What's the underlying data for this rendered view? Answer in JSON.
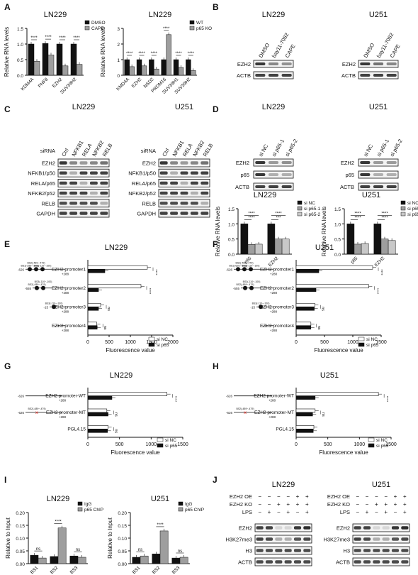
{
  "panels": {
    "A": {
      "letter": "A",
      "charts": [
        {
          "title": "LN229",
          "ylabel": "Relative RNA levels",
          "legend": [
            "DMSO",
            "CAPE"
          ]
        },
        {
          "title": "LN229",
          "ylabel": "Relative RNA levels",
          "legend": [
            "WT",
            "p65 KO"
          ]
        }
      ]
    },
    "B": {
      "letter": "B",
      "blots": [
        {
          "title": "LN229",
          "lanes": [
            "DMSO",
            "bay11-7082",
            "CAPE"
          ],
          "rows": [
            "EZH2",
            "ACTB"
          ]
        },
        {
          "title": "U251",
          "lanes": [
            "DMSO",
            "bay11-7082",
            "CAPE"
          ],
          "rows": [
            "EZH2",
            "ACTB"
          ]
        }
      ]
    },
    "C": {
      "letter": "C",
      "blots": [
        {
          "title": "LN229",
          "header": "siRNA",
          "lanes": [
            "Ctrl",
            "NFKB1",
            "RELA",
            "NFKB2",
            "RELB"
          ],
          "rows": [
            "EZH2",
            "NFKB1/p50",
            "RELA/p65",
            "NFKB2/p52",
            "RELB",
            "GAPDH"
          ]
        },
        {
          "title": "U251",
          "header": "siRNA",
          "lanes": [
            "Ctrl",
            "NFKB1",
            "RELA",
            "NFKB2",
            "RELB"
          ],
          "rows": [
            "EZH2",
            "NFKB1/p50",
            "RELA/p65",
            "NFKB2/p52",
            "RELB",
            "GAPDH"
          ]
        }
      ]
    },
    "D": {
      "letter": "D",
      "blots": [
        {
          "title": "LN229",
          "lanes": [
            "si NC",
            "si p65-1",
            "si p65-2"
          ],
          "rows": [
            "EZH2",
            "p65",
            "ACTB"
          ]
        },
        {
          "title": "U251",
          "lanes": [
            "si NC",
            "si p65-1",
            "si p65-2"
          ],
          "rows": [
            "EZH2",
            "p65",
            "ACTB"
          ]
        }
      ],
      "charts": [
        {
          "title": "LN229",
          "ylabel": "Relative RNA levels",
          "legend": [
            "si NC",
            "si p65-1",
            "si p65-2"
          ]
        },
        {
          "title": "U251",
          "ylabel": "Relative RNA levels",
          "legend": [
            "si NC",
            "si p65-1",
            "si p65-2"
          ]
        }
      ]
    },
    "E": {
      "letter": "E",
      "title": "LN229",
      "xlabel": "Fluorescence value",
      "legend": [
        "si NC",
        "si p65"
      ]
    },
    "F": {
      "letter": "F",
      "title": "U251",
      "xlabel": "Fluorescence value",
      "legend": [
        "si NC",
        "si p65"
      ]
    },
    "G": {
      "letter": "G",
      "title": "LN229",
      "xlabel": "Fluorescence value",
      "legend": [
        "si NC",
        "si p65"
      ]
    },
    "H": {
      "letter": "H",
      "title": "U251",
      "xlabel": "Fluorescence value",
      "legend": [
        "si NC",
        "si p65"
      ]
    },
    "I": {
      "letter": "I",
      "charts": [
        {
          "title": "LN229",
          "ylabel": "Relative to Input",
          "legend": [
            "IgG",
            "p65 ChIP"
          ]
        },
        {
          "title": "U251",
          "ylabel": "Relative to Input",
          "legend": [
            "IgG",
            "p65 ChIP"
          ]
        }
      ]
    },
    "J": {
      "letter": "J",
      "blots": [
        {
          "title": "LN229",
          "conditions": [
            {
              "label": "EZH2 OE",
              "signs": [
                "−",
                "−",
                "−",
                "−",
                "+",
                "+"
              ]
            },
            {
              "label": "EZH2 KO",
              "signs": [
                "−",
                "−",
                "+",
                "+",
                "+",
                "+"
              ]
            },
            {
              "label": "LPS",
              "signs": [
                "−",
                "+",
                "−",
                "+",
                "−",
                "+"
              ]
            }
          ],
          "rows": [
            "EZH2",
            "H3K27me3",
            "H3",
            "ACTB"
          ]
        },
        {
          "title": "U251",
          "conditions": [
            {
              "label": "EZH2 OE",
              "signs": [
                "−",
                "−",
                "−",
                "−",
                "+",
                "+"
              ]
            },
            {
              "label": "EZH2 KO",
              "signs": [
                "−",
                "−",
                "+",
                "+",
                "+",
                "+"
              ]
            },
            {
              "label": "LPS",
              "signs": [
                "−",
                "+",
                "−",
                "+",
                "−",
                "+"
              ]
            }
          ],
          "rows": [
            "EZH2",
            "H3K27me3",
            "H3",
            "ACTB"
          ]
        }
      ]
    }
  },
  "chart_data": [
    {
      "id": "A1",
      "type": "bar",
      "title": "LN229",
      "ylabel": "Relative RNA levels",
      "ylim": [
        0,
        1.5
      ],
      "yticks": [
        "0.0",
        "0.5",
        "1.0",
        "1.5"
      ],
      "categories": [
        "KDM4A",
        "PHF8",
        "EZH2",
        "SUV39H2"
      ],
      "series": [
        {
          "name": "DMSO",
          "values": [
            1.0,
            1.02,
            1.0,
            1.0
          ],
          "color": "#111111"
        },
        {
          "name": "CAPE",
          "values": [
            0.45,
            0.65,
            0.3,
            0.35
          ],
          "color": "#9e9e9e"
        }
      ],
      "significance": [
        "****",
        "****",
        "****",
        "****"
      ]
    },
    {
      "id": "A2",
      "type": "bar",
      "title": "LN229",
      "ylabel": "Relative RNA levels",
      "ylim": [
        0,
        3
      ],
      "yticks": [
        "0",
        "1",
        "2",
        "3"
      ],
      "categories": [
        "KMD4A",
        "EZH2",
        "NSD2",
        "PRDM16",
        "SUV39H1",
        "SUV39H2"
      ],
      "series": [
        {
          "name": "WT",
          "values": [
            1.0,
            1.0,
            1.0,
            1.0,
            1.0,
            1.0
          ],
          "color": "#111111"
        },
        {
          "name": "p65 KO",
          "values": [
            0.55,
            0.6,
            0.4,
            2.6,
            0.5,
            0.3
          ],
          "color": "#9e9e9e"
        }
      ],
      "significance": [
        "****",
        "****",
        "****",
        "****",
        "****",
        "****"
      ]
    },
    {
      "id": "D1",
      "type": "bar",
      "title": "LN229",
      "ylabel": "Relative RNA levels",
      "ylim": [
        0,
        1.5
      ],
      "yticks": [
        "0.0",
        "0.5",
        "1.0",
        "1.5"
      ],
      "categories": [
        "p65",
        "EZH2"
      ],
      "series": [
        {
          "name": "si NC",
          "values": [
            1.0,
            1.0
          ],
          "color": "#111111"
        },
        {
          "name": "si p65-1",
          "values": [
            0.32,
            0.5
          ],
          "color": "#9e9e9e"
        },
        {
          "name": "si p65-2",
          "values": [
            0.33,
            0.5
          ],
          "color": "#c8c8c8"
        }
      ],
      "significance": [
        [
          "****",
          "****"
        ],
        [
          "***",
          "****"
        ]
      ]
    },
    {
      "id": "D2",
      "type": "bar",
      "title": "U251",
      "ylabel": "Relative RNA levels",
      "ylim": [
        0,
        1.5
      ],
      "yticks": [
        "0.0",
        "0.5",
        "1.0",
        "1.5"
      ],
      "categories": [
        "p65",
        "EZH2"
      ],
      "series": [
        {
          "name": "si NC",
          "values": [
            1.0,
            1.0
          ],
          "color": "#111111"
        },
        {
          "name": "si p65-1",
          "values": [
            0.33,
            0.5
          ],
          "color": "#9e9e9e"
        },
        {
          "name": "si p65-2",
          "values": [
            0.35,
            0.45
          ],
          "color": "#c8c8c8"
        }
      ],
      "significance": [
        [
          "****",
          "****"
        ],
        [
          "****",
          "****"
        ]
      ]
    },
    {
      "id": "E",
      "type": "bar",
      "orientation": "horizontal",
      "title": "LN229",
      "xlabel": "Fluorescence value",
      "xlim": [
        0,
        2000
      ],
      "xticks": [
        "0",
        "500",
        "1000",
        "1500",
        "2000"
      ],
      "categories": [
        "EZH2 promoter1",
        "EZH2 promoter2",
        "EZH2 promoter3",
        "EZH2 promoter4"
      ],
      "series": [
        {
          "name": "si NC",
          "values": [
            1400,
            1250,
            300,
            210
          ],
          "color": "#ffffff"
        },
        {
          "name": "si p65",
          "values": [
            400,
            250,
            250,
            220
          ],
          "color": "#111111"
        }
      ],
      "significance": [
        "****",
        "****",
        "ns",
        "ns"
      ],
      "constructs": [
        {
          "start": "-626",
          "end": "+288",
          "bs": [
            "BS1(-286~-278)",
            "BS2(-489~-479)",
            "BS3(-110~-100)"
          ]
        },
        {
          "start": "-555",
          "end": "+288",
          "bs": [
            "BS2(-489~-479)",
            "BS3(-110~-100)"
          ]
        },
        {
          "start": "-15",
          "end": "+288",
          "bs": [
            "BS3(-110~-100)"
          ]
        },
        {
          "start": "+72",
          "end": "+288",
          "bs": []
        }
      ]
    },
    {
      "id": "F",
      "type": "bar",
      "orientation": "horizontal",
      "title": "U251",
      "xlabel": "Fluorescence value",
      "xlim": [
        0,
        1500
      ],
      "xticks": [
        "0",
        "500",
        "1000",
        "1500"
      ],
      "categories": [
        "EZH2 promoter1",
        "EZH2 promoter2",
        "EZH2 promoter3",
        "EZH2 promoter4"
      ],
      "series": [
        {
          "name": "si NC",
          "values": [
            1350,
            1280,
            330,
            260
          ],
          "color": "#ffffff"
        },
        {
          "name": "si p65",
          "values": [
            400,
            350,
            320,
            260
          ],
          "color": "#111111"
        }
      ],
      "significance": [
        "****",
        "****",
        "ns",
        "ns"
      ],
      "constructs": [
        {
          "start": "-626",
          "end": "+288",
          "bs": [
            "BS1(-626~-575)",
            "BS2(-486~-479)",
            "BS3(-110~-100)"
          ]
        },
        {
          "start": "-555",
          "end": "+288",
          "bs": [
            "BS2(-489~-479)",
            "BS3(-110~-100)"
          ]
        },
        {
          "start": "-15",
          "end": "+288",
          "bs": [
            "BS3(-110~-100)"
          ]
        },
        {
          "start": "+72",
          "end": "+288",
          "bs": []
        }
      ]
    },
    {
      "id": "G",
      "type": "bar",
      "orientation": "horizontal",
      "title": "LN229",
      "xlabel": "Fluorescence value",
      "xlim": [
        0,
        1500
      ],
      "xticks": [
        "0",
        "500",
        "1000",
        "1500"
      ],
      "categories": [
        "EZH2 promoter-WT",
        "EZH2 promoter-MT",
        "PGL4.15"
      ],
      "series": [
        {
          "name": "si NC",
          "values": [
            1250,
            300,
            320
          ],
          "color": "#ffffff"
        },
        {
          "name": "si p65",
          "values": [
            380,
            320,
            310
          ],
          "color": "#111111"
        }
      ],
      "significance": [
        "****",
        "ns",
        "ns"
      ],
      "constructs": [
        {
          "start": "-626",
          "end": "+288",
          "bs": []
        },
        {
          "start": "-626",
          "end": "+288",
          "bs": [
            "BS2(-489~-479)"
          ]
        }
      ]
    },
    {
      "id": "H",
      "type": "bar",
      "orientation": "horizontal",
      "title": "U251",
      "xlabel": "Fluorescence value",
      "xlim": [
        0,
        1500
      ],
      "xticks": [
        "0",
        "500",
        "1000",
        "1500"
      ],
      "categories": [
        "EZH2 promoter-WT",
        "EZH2 promoter-MT",
        "PGL4.15"
      ],
      "series": [
        {
          "name": "si NC",
          "values": [
            1300,
            300,
            280
          ],
          "color": "#ffffff"
        },
        {
          "name": "si p65",
          "values": [
            300,
            260,
            270
          ],
          "color": "#111111"
        }
      ],
      "significance": [
        "****",
        "ns",
        ""
      ],
      "constructs": [
        {
          "start": "-626",
          "end": "+288",
          "bs": []
        },
        {
          "start": "-626",
          "end": "+288",
          "bs": [
            "BS2(-489~-479)"
          ]
        }
      ]
    },
    {
      "id": "I1",
      "type": "bar",
      "title": "LN229",
      "ylabel": "Relative to Input",
      "ylim": [
        0,
        0.2
      ],
      "yticks": [
        "0.00",
        "0.05",
        "0.10",
        "0.15",
        "0.20"
      ],
      "categories": [
        "BS1",
        "BS2",
        "BS3"
      ],
      "series": [
        {
          "name": "IgG",
          "values": [
            0.033,
            0.028,
            0.03
          ],
          "color": "#111111"
        },
        {
          "name": "p65 ChIP",
          "values": [
            0.022,
            0.14,
            0.025
          ],
          "color": "#9e9e9e"
        }
      ],
      "significance": [
        "ns",
        "****",
        "ns"
      ]
    },
    {
      "id": "I2",
      "type": "bar",
      "title": "U251",
      "ylabel": "Relative to Input",
      "ylim": [
        0,
        0.2
      ],
      "yticks": [
        "0.00",
        "0.05",
        "0.10",
        "0.15",
        "0.20"
      ],
      "categories": [
        "BS1",
        "BS2",
        "BS3"
      ],
      "series": [
        {
          "name": "IgG",
          "values": [
            0.025,
            0.038,
            0.022
          ],
          "color": "#111111"
        },
        {
          "name": "p65 ChIP",
          "values": [
            0.03,
            0.128,
            0.025
          ],
          "color": "#9e9e9e"
        }
      ],
      "significance": [
        "ns",
        "****",
        "ns"
      ]
    }
  ]
}
